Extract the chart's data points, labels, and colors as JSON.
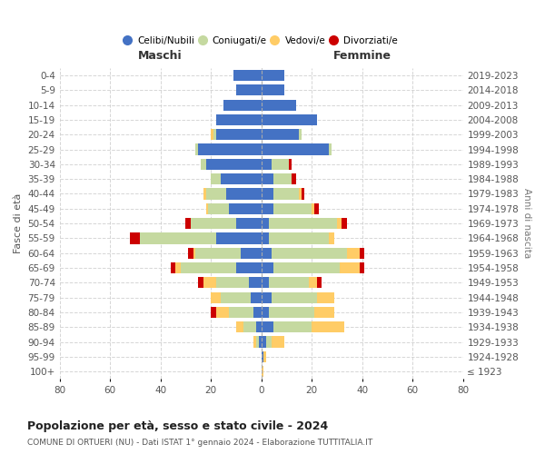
{
  "age_groups": [
    "100+",
    "95-99",
    "90-94",
    "85-89",
    "80-84",
    "75-79",
    "70-74",
    "65-69",
    "60-64",
    "55-59",
    "50-54",
    "45-49",
    "40-44",
    "35-39",
    "30-34",
    "25-29",
    "20-24",
    "15-19",
    "10-14",
    "5-9",
    "0-4"
  ],
  "birth_years": [
    "≤ 1923",
    "1924-1928",
    "1929-1933",
    "1934-1938",
    "1939-1943",
    "1944-1948",
    "1949-1953",
    "1954-1958",
    "1959-1963",
    "1964-1968",
    "1969-1973",
    "1974-1978",
    "1979-1983",
    "1984-1988",
    "1989-1993",
    "1994-1998",
    "1999-2003",
    "2004-2008",
    "2009-2013",
    "2014-2018",
    "2019-2023"
  ],
  "colors": {
    "celibe": "#4472C4",
    "coniugato": "#C5D9A0",
    "vedovo": "#FFCC66",
    "divorziato": "#CC0000"
  },
  "maschi": {
    "celibe": [
      0,
      0,
      1,
      2,
      3,
      4,
      5,
      10,
      8,
      18,
      10,
      13,
      14,
      16,
      22,
      25,
      18,
      18,
      15,
      10,
      11
    ],
    "coniugato": [
      0,
      0,
      1,
      5,
      10,
      12,
      13,
      22,
      18,
      30,
      18,
      8,
      8,
      4,
      2,
      1,
      1,
      0,
      0,
      0,
      0
    ],
    "vedovo": [
      0,
      0,
      1,
      3,
      5,
      4,
      5,
      2,
      1,
      0,
      0,
      1,
      1,
      0,
      0,
      0,
      1,
      0,
      0,
      0,
      0
    ],
    "divorziato": [
      0,
      0,
      0,
      0,
      2,
      0,
      2,
      2,
      2,
      4,
      2,
      0,
      0,
      0,
      0,
      0,
      0,
      0,
      0,
      0,
      0
    ]
  },
  "femmine": {
    "nubile": [
      0,
      1,
      2,
      5,
      3,
      4,
      3,
      5,
      4,
      3,
      3,
      5,
      5,
      5,
      4,
      27,
      15,
      22,
      14,
      9,
      9
    ],
    "coniugata": [
      0,
      0,
      2,
      15,
      18,
      18,
      16,
      26,
      30,
      24,
      27,
      15,
      10,
      7,
      7,
      1,
      1,
      0,
      0,
      0,
      0
    ],
    "vedova": [
      1,
      1,
      5,
      13,
      8,
      7,
      3,
      8,
      5,
      2,
      2,
      1,
      1,
      0,
      0,
      0,
      0,
      0,
      0,
      0,
      0
    ],
    "divorziata": [
      0,
      0,
      0,
      0,
      0,
      0,
      2,
      2,
      2,
      0,
      2,
      2,
      1,
      2,
      1,
      0,
      0,
      0,
      0,
      0,
      0
    ]
  },
  "xlim": 80,
  "title": "Popolazione per età, sesso e stato civile - 2024",
  "subtitle": "COMUNE DI ORTUERI (NU) - Dati ISTAT 1° gennaio 2024 - Elaborazione TUTTITALIA.IT",
  "ylabel_left": "Fasce di età",
  "ylabel_right": "Anni di nascita",
  "xlabel_left": "Maschi",
  "xlabel_right": "Femmine",
  "bg_color": "#FFFFFF",
  "grid_color": "#CCCCCC"
}
